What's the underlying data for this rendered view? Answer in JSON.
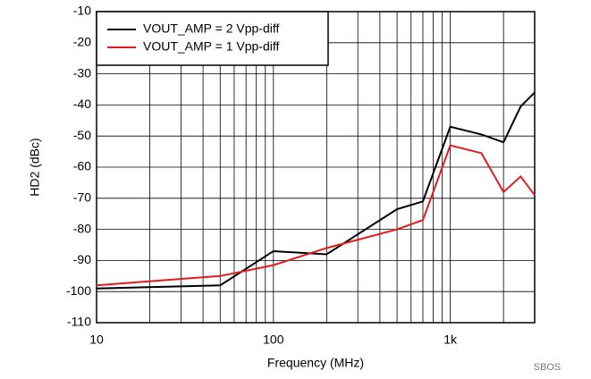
{
  "chart_data": {
    "type": "line",
    "xlabel": "Frequency (MHz)",
    "ylabel": "HD2 (dBc)",
    "annotation": "SBOS",
    "x": [
      10,
      50,
      100,
      200,
      500,
      700,
      1000,
      1500,
      2000,
      2500,
      3000
    ],
    "series": [
      {
        "name": "VOUT_AMP = 2 Vpp-diff",
        "color": "#000000",
        "values": [
          -99,
          -98,
          -87,
          -88,
          -73.5,
          -71,
          -47,
          -49.5,
          -52,
          -40.5,
          -36
        ]
      },
      {
        "name": "VOUT_AMP = 1 Vpp-diff",
        "color": "#e41a1c",
        "values": [
          -98,
          -95,
          -91.5,
          -86,
          -80,
          -77,
          -53,
          -55.5,
          -68,
          -63,
          -69
        ]
      }
    ],
    "xscale": "log",
    "xlim": [
      10,
      3000
    ],
    "xticks": [
      10,
      100,
      {
        "value": 1000,
        "label": "1k"
      }
    ],
    "xminor_ticks": [
      20,
      30,
      40,
      50,
      60,
      70,
      80,
      90,
      200,
      300,
      400,
      500,
      600,
      700,
      800,
      900,
      2000,
      3000
    ],
    "ylim": [
      -110,
      -10
    ],
    "yticks": [
      -110,
      -100,
      -90,
      -80,
      -70,
      -60,
      -50,
      -40,
      -30,
      -20,
      -10
    ],
    "grid": true,
    "legend": "upper left"
  }
}
